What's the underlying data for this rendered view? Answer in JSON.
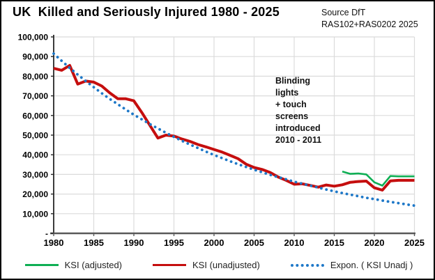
{
  "chart_data": {
    "type": "line",
    "title": "UK  Killed and Seriously Injured 1980 - 2025",
    "source": "Source DfT\nRAS102+RAS0202 2025",
    "annotation": "Blinding\nlights\n+ touch\nscreens\nintroduced\n2010 - 2011",
    "xlim": [
      1980,
      2025
    ],
    "ylim": [
      0,
      100000
    ],
    "grid": true,
    "legend_position": "bottom",
    "x_ticks": [
      1980,
      1985,
      1990,
      1995,
      2000,
      2005,
      2010,
      2015,
      2020,
      2025
    ],
    "y_ticks": {
      "values": [
        100000,
        90000,
        80000,
        70000,
        60000,
        50000,
        40000,
        30000,
        20000,
        10000,
        0
      ],
      "labels": [
        "100,000",
        "90,000",
        "80,000",
        "70,000",
        "60,000",
        "50,000",
        "40,000",
        "30,000",
        "20,000",
        "10,000",
        "-"
      ]
    },
    "years": [
      1980,
      1981,
      1982,
      1983,
      1984,
      1985,
      1986,
      1987,
      1988,
      1989,
      1990,
      1991,
      1992,
      1993,
      1994,
      1995,
      1996,
      1997,
      1998,
      1999,
      2000,
      2001,
      2002,
      2003,
      2004,
      2005,
      2006,
      2007,
      2008,
      2009,
      2010,
      2011,
      2012,
      2013,
      2014,
      2015,
      2016,
      2017,
      2018,
      2019,
      2020,
      2021,
      2022,
      2023,
      2024,
      2025
    ],
    "series": [
      {
        "name": "KSI (adjusted)",
        "color": "#0FAF54",
        "width": 2.6,
        "style": "solid",
        "start_year": 2016,
        "values": [
          31500,
          30300,
          30500,
          30000,
          26000,
          24300,
          29200,
          29000,
          29000,
          29000
        ]
      },
      {
        "name": "KSI (unadjusted)",
        "color": "#C50E0E",
        "width": 4,
        "style": "solid",
        "start_year": 1980,
        "values": [
          84000,
          83000,
          85500,
          76000,
          77500,
          77000,
          75000,
          71500,
          68500,
          68500,
          67500,
          61500,
          55000,
          48500,
          50000,
          49500,
          48000,
          46800,
          45200,
          44000,
          42700,
          41400,
          39700,
          38000,
          35200,
          33500,
          32500,
          31000,
          28700,
          27000,
          25000,
          25200,
          24400,
          23500,
          24600,
          24000,
          24700,
          26000,
          26400,
          26600,
          23200,
          22000,
          26700,
          27000,
          27000,
          27000
        ]
      },
      {
        "name": "Expon. ( KSI Unadj )",
        "color": "#1E78C8",
        "width": 3.8,
        "style": "dotted",
        "start_year": 1980,
        "values": [
          91500,
          87800,
          84200,
          80800,
          77500,
          74400,
          71300,
          68400,
          65700,
          63000,
          60400,
          58000,
          55600,
          53400,
          51200,
          49100,
          47100,
          45200,
          43400,
          41600,
          39900,
          38300,
          36700,
          35200,
          33800,
          32400,
          31100,
          29800,
          28600,
          27500,
          26300,
          25300,
          24300,
          23300,
          22300,
          21400,
          20500,
          19700,
          18900,
          18100,
          17400,
          16700,
          16000,
          15400,
          14700,
          14100
        ]
      }
    ]
  }
}
